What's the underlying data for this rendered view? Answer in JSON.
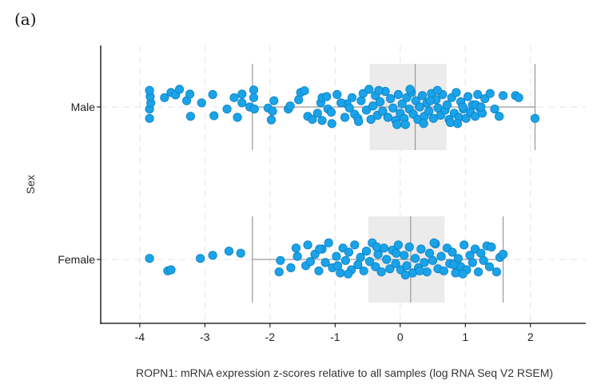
{
  "panel_label": "(a)",
  "chart_data": {
    "type": "scatter",
    "subtype": "jittered strip plot with box plot overlay",
    "xlabel": "ROPN1: mRNA expression z-scores relative to all samples (log RNA Seq V2 RSEM)",
    "ylabel": "Sex",
    "xlim": [
      -4.6,
      2.85
    ],
    "xticks": [
      -4,
      -3,
      -2,
      -1,
      0,
      1,
      2
    ],
    "xtick_labels": [
      "-4",
      "-3",
      "-2",
      "-1",
      "0",
      "1",
      "2"
    ],
    "categories": [
      "Male",
      "Female"
    ],
    "grid": "dashed vertical lines at each x tick and horizontal dashed line at each category",
    "point_color": "#1aa3e8",
    "point_edge_color": "#0b7fc4",
    "box_fill": "#ebebeb",
    "whisker_color": "#999999",
    "series": [
      {
        "name": "Male",
        "box": {
          "whisker_low": -2.27,
          "q1": -0.47,
          "median": 0.23,
          "q3": 0.71,
          "whisker_high": 2.07
        },
        "x": [
          -3.85,
          -3.85,
          -3.83,
          -3.84,
          -3.85,
          -3.62,
          -3.52,
          -3.45,
          -3.39,
          -3.28,
          -3.22,
          -3.23,
          -3.05,
          -2.88,
          -2.86,
          -2.66,
          -2.55,
          -2.5,
          -2.43,
          -2.43,
          -2.31,
          -2.25,
          -2.25,
          -2.24,
          -2.03,
          -1.98,
          -1.96,
          -1.94,
          -1.72,
          -1.69,
          -1.56,
          -1.53,
          -1.47,
          -1.42,
          -1.35,
          -1.27,
          -1.22,
          -1.2,
          -1.2,
          -1.13,
          -1.11,
          -1.06,
          -0.97,
          -0.85,
          -0.82,
          -0.78,
          -0.74,
          -0.7,
          -0.65,
          -0.6,
          -0.57,
          -0.52,
          -0.45,
          -0.42,
          -0.38,
          -0.35,
          -0.31,
          -0.27,
          -0.23,
          -0.19,
          -0.15,
          -0.11,
          -0.07,
          -0.03,
          0.0,
          0.03,
          0.06,
          0.1,
          0.14,
          0.17,
          0.2,
          0.24,
          0.27,
          0.3,
          0.34,
          0.37,
          0.41,
          0.44,
          0.48,
          0.51,
          0.55,
          0.58,
          0.62,
          0.65,
          0.69,
          0.72,
          0.75,
          0.79,
          0.83,
          0.86,
          0.9,
          0.93,
          0.97,
          1.01,
          1.04,
          1.08,
          1.11,
          1.15,
          1.19,
          1.22,
          1.26,
          1.3,
          1.38,
          1.45,
          1.52,
          1.58,
          1.77,
          1.82,
          2.07,
          -0.91,
          -0.64,
          -0.33,
          -0.05,
          0.15,
          0.36,
          0.57,
          0.77,
          0.96,
          1.16,
          -1.05,
          -0.48,
          0.08,
          0.46,
          0.88,
          1.24
        ],
        "y_offset": [
          0.55,
          0.1,
          -0.2,
          -0.5,
          -0.8,
          -0.45,
          -0.7,
          -0.58,
          -0.85,
          -0.3,
          0.45,
          -0.62,
          -0.2,
          -0.6,
          0.42,
          0.1,
          -0.45,
          0.5,
          -0.2,
          -0.62,
          0.0,
          -0.82,
          -0.45,
          0.1,
          0.05,
          0.62,
          0.2,
          -0.3,
          0.1,
          -0.05,
          -0.35,
          -0.7,
          -0.78,
          0.45,
          0.6,
          0.3,
          -0.2,
          -0.45,
          0.65,
          -0.5,
          0.1,
          0.25,
          -0.6,
          0.5,
          -0.15,
          0.05,
          -0.45,
          0.35,
          0.55,
          -0.3,
          -0.65,
          0.15,
          0.6,
          -0.05,
          -0.55,
          0.4,
          -0.25,
          0.2,
          -0.75,
          0.5,
          -0.4,
          0.05,
          0.65,
          -0.6,
          0.3,
          -0.15,
          0.55,
          -0.45,
          0.1,
          -0.7,
          0.35,
          -0.3,
          0.6,
          0.0,
          -0.55,
          0.45,
          -0.2,
          0.2,
          -0.65,
          0.55,
          -0.35,
          0.05,
          0.4,
          -0.6,
          0.15,
          -0.1,
          0.6,
          -0.45,
          0.3,
          -0.7,
          0.5,
          -0.25,
          0.1,
          0.55,
          -0.5,
          0.25,
          -0.1,
          0.45,
          -0.6,
          0.05,
          0.3,
          -0.4,
          -0.65,
          0.1,
          0.45,
          -0.55,
          -0.55,
          -0.45,
          0.55,
          -0.2,
          0.7,
          -0.8,
          0.85,
          -0.85,
          0.8,
          -0.8,
          0.75,
          0.0,
          -0.1,
          0.8,
          -0.85,
          0.85,
          -0.3,
          0.8
        ]
      },
      {
        "name": "Female",
        "box": {
          "whisker_low": -2.27,
          "q1": -0.49,
          "median": 0.16,
          "q3": 0.68,
          "whisker_high": 1.58
        },
        "x": [
          -3.85,
          -3.57,
          -3.52,
          -3.07,
          -2.88,
          -2.63,
          -2.45,
          -1.86,
          -1.84,
          -1.68,
          -1.6,
          -1.58,
          -1.45,
          -1.42,
          -1.38,
          -1.31,
          -1.25,
          -1.2,
          -1.15,
          -1.1,
          -1.04,
          -0.98,
          -0.92,
          -0.88,
          -0.84,
          -0.79,
          -0.75,
          -0.7,
          -0.65,
          -0.61,
          -0.56,
          -0.52,
          -0.47,
          -0.43,
          -0.38,
          -0.34,
          -0.29,
          -0.25,
          -0.21,
          -0.16,
          -0.12,
          -0.07,
          -0.03,
          0.01,
          0.06,
          0.1,
          0.14,
          0.19,
          0.23,
          0.28,
          0.32,
          0.37,
          0.41,
          0.45,
          0.5,
          0.54,
          0.58,
          0.63,
          0.67,
          0.72,
          0.76,
          0.8,
          0.85,
          0.89,
          0.93,
          0.98,
          1.02,
          1.07,
          1.11,
          1.15,
          1.2,
          1.24,
          1.28,
          1.33,
          1.37,
          1.48,
          1.53,
          1.58,
          -1.24,
          -0.8,
          -0.36,
          0.08,
          0.52,
          0.96,
          1.4,
          -0.96,
          -0.06,
          0.82,
          0.3
        ],
        "y_offset": [
          -0.05,
          0.55,
          0.5,
          -0.05,
          -0.2,
          -0.4,
          -0.3,
          0.6,
          0.05,
          0.4,
          -0.55,
          -0.15,
          0.3,
          -0.7,
          0.1,
          -0.25,
          0.55,
          -0.5,
          0.15,
          -0.8,
          0.4,
          -0.15,
          0.65,
          -0.55,
          0.05,
          -0.35,
          0.5,
          -0.7,
          0.25,
          -0.1,
          0.55,
          -0.4,
          0.1,
          -0.8,
          0.35,
          -0.25,
          0.6,
          -0.55,
          0.0,
          0.45,
          -0.45,
          0.2,
          -0.7,
          0.5,
          -0.2,
          0.3,
          -0.6,
          0.65,
          -0.05,
          0.4,
          -0.5,
          0.15,
          0.6,
          -0.3,
          0.05,
          -0.75,
          0.45,
          -0.15,
          0.55,
          -0.55,
          0.2,
          -0.35,
          0.65,
          -0.05,
          0.35,
          -0.7,
          0.5,
          -0.2,
          0.15,
          -0.5,
          0.6,
          -0.3,
          0.05,
          -0.65,
          0.35,
          0.6,
          -0.1,
          -0.25,
          -0.5,
          0.7,
          -0.6,
          0.75,
          -0.8,
          0.7,
          -0.6,
          0.3,
          -0.3,
          0.25,
          0.55
        ]
      }
    ]
  }
}
